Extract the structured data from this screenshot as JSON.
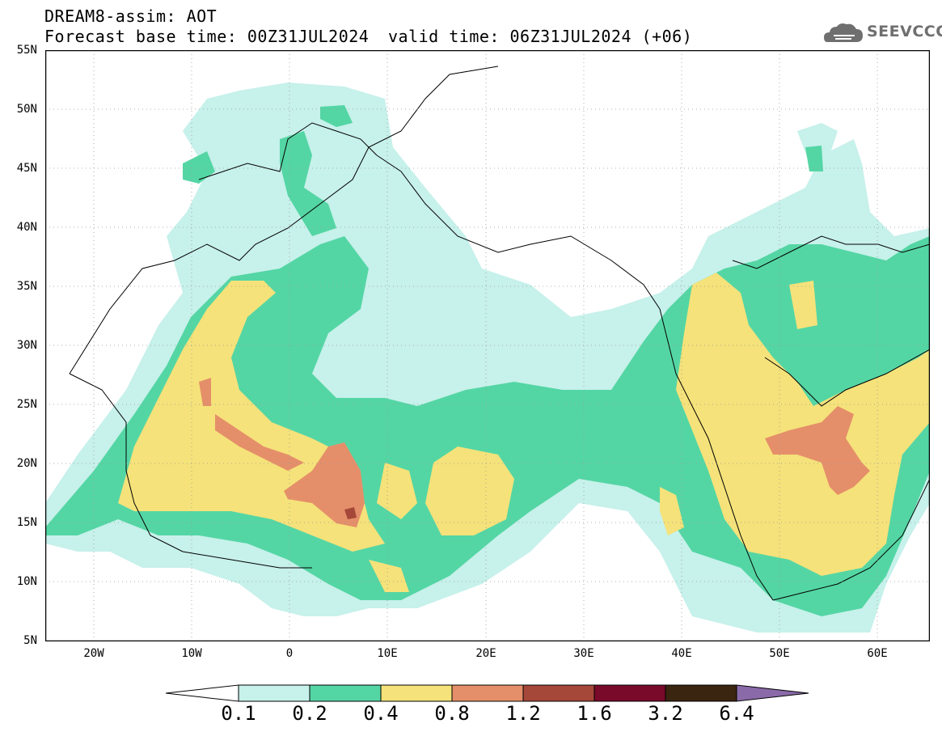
{
  "header": {
    "line1": "DREAM8-assim: AOT",
    "line2": "Forecast base time: 00Z31JUL2024",
    "line2b": "valid time: 06Z31JUL2024 (+06)"
  },
  "logo": {
    "text": "SEEVCCC",
    "icon": "cloud-icon"
  },
  "map": {
    "lat_labels": [
      "55N",
      "50N",
      "45N",
      "40N",
      "35N",
      "30N",
      "25N",
      "20N",
      "15N",
      "10N",
      "5N"
    ],
    "lon_labels": [
      "20W",
      "10W",
      "0",
      "10E",
      "20E",
      "30E",
      "40E",
      "50E",
      "60E"
    ]
  },
  "colorbar": {
    "labels": [
      "0.1",
      "0.2",
      "0.4",
      "0.8",
      "1.2",
      "1.6",
      "3.2",
      "6.4"
    ],
    "colors": [
      "#c7f1eb",
      "#54d6a4",
      "#f5e27a",
      "#e58f6a",
      "#a5483a",
      "#7a0a2a",
      "#3a2511",
      "#8a6aa8"
    ]
  }
}
